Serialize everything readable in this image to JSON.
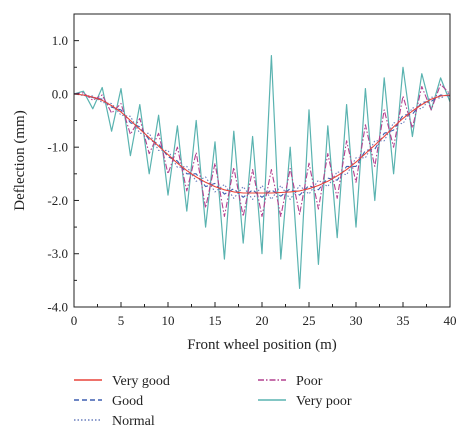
{
  "chart_data": {
    "type": "line",
    "xlabel": "Front wheel position (m)",
    "ylabel": "Deflection (mm)",
    "xlim": [
      0,
      40
    ],
    "ylim": [
      -4.0,
      1.5
    ],
    "x_ticks": [
      0,
      5,
      10,
      15,
      20,
      25,
      30,
      35,
      40
    ],
    "x_tick_labels": [
      "0",
      "5",
      "10",
      "15",
      "20",
      "25",
      "30",
      "35",
      "40"
    ],
    "y_ticks": [
      1.0,
      0.0,
      -1.0,
      -2.0,
      -3.0,
      -4.0
    ],
    "y_tick_labels": [
      "1.0",
      "0.0",
      "-1.0",
      "-2.0",
      "-3.0",
      "-4.0"
    ],
    "grid": false,
    "legend_position": "bottom",
    "series": [
      {
        "name": "Very good",
        "color": "#e8433a",
        "dash": "solid",
        "x": [
          0,
          1,
          2,
          3,
          4,
          5,
          6,
          7,
          8,
          9,
          10,
          11,
          12,
          13,
          14,
          15,
          16,
          17,
          18,
          19,
          20,
          21,
          22,
          23,
          24,
          25,
          26,
          27,
          28,
          29,
          30,
          31,
          32,
          33,
          34,
          35,
          36,
          37,
          38,
          39,
          40
        ],
        "y": [
          0,
          -0.02,
          -0.06,
          -0.12,
          -0.22,
          -0.34,
          -0.5,
          -0.66,
          -0.82,
          -0.98,
          -1.14,
          -1.3,
          -1.44,
          -1.56,
          -1.66,
          -1.74,
          -1.8,
          -1.84,
          -1.86,
          -1.86,
          -1.86,
          -1.86,
          -1.85,
          -1.84,
          -1.82,
          -1.78,
          -1.72,
          -1.64,
          -1.54,
          -1.42,
          -1.28,
          -1.12,
          -0.96,
          -0.8,
          -0.62,
          -0.46,
          -0.32,
          -0.2,
          -0.1,
          -0.04,
          -0.02
        ]
      },
      {
        "name": "Good",
        "color": "#3f5fb0",
        "dash": "dashed",
        "x": [
          0,
          1,
          2,
          3,
          4,
          5,
          6,
          7,
          8,
          9,
          10,
          11,
          12,
          13,
          14,
          15,
          16,
          17,
          18,
          19,
          20,
          21,
          22,
          23,
          24,
          25,
          26,
          27,
          28,
          29,
          30,
          31,
          32,
          33,
          34,
          35,
          36,
          37,
          38,
          39,
          40
        ],
        "y": [
          0,
          -0.02,
          -0.07,
          -0.1,
          -0.25,
          -0.3,
          -0.54,
          -0.62,
          -0.86,
          -0.94,
          -1.18,
          -1.26,
          -1.5,
          -1.5,
          -1.74,
          -1.68,
          -1.88,
          -1.78,
          -1.94,
          -1.8,
          -1.94,
          -1.8,
          -1.92,
          -1.78,
          -1.9,
          -1.72,
          -1.8,
          -1.58,
          -1.62,
          -1.36,
          -1.36,
          -1.06,
          -1.04,
          -0.74,
          -0.68,
          -0.4,
          -0.38,
          -0.16,
          -0.14,
          -0.02,
          -0.04
        ]
      },
      {
        "name": "Normal",
        "color": "#6a7fbe",
        "dash": "dotted",
        "x": [
          0,
          1,
          2,
          3,
          4,
          5,
          6,
          7,
          8,
          9,
          10,
          11,
          12,
          13,
          14,
          15,
          16,
          17,
          18,
          19,
          20,
          21,
          22,
          23,
          24,
          25,
          26,
          27,
          28,
          29,
          30,
          31,
          32,
          33,
          34,
          35,
          36,
          37,
          38,
          39,
          40
        ],
        "y": [
          0,
          -0.03,
          -0.04,
          -0.16,
          -0.18,
          -0.4,
          -0.42,
          -0.74,
          -0.74,
          -1.06,
          -1.06,
          -1.38,
          -1.36,
          -1.64,
          -1.56,
          -1.84,
          -1.7,
          -1.96,
          -1.74,
          -1.98,
          -1.72,
          -1.98,
          -1.72,
          -1.98,
          -1.72,
          -1.88,
          -1.62,
          -1.74,
          -1.46,
          -1.52,
          -1.2,
          -1.2,
          -0.88,
          -0.88,
          -0.54,
          -0.56,
          -0.26,
          -0.28,
          -0.06,
          -0.08,
          0.02
        ]
      },
      {
        "name": "Poor",
        "color": "#b4408f",
        "dash": "dashdot",
        "x": [
          0,
          1,
          2,
          3,
          4,
          5,
          6,
          7,
          8,
          9,
          10,
          11,
          12,
          13,
          14,
          15,
          16,
          17,
          18,
          19,
          20,
          21,
          22,
          23,
          24,
          25,
          26,
          27,
          28,
          29,
          30,
          31,
          32,
          33,
          34,
          35,
          36,
          37,
          38,
          39,
          40
        ],
        "y": [
          0,
          0.02,
          -0.12,
          -0.02,
          -0.36,
          -0.18,
          -0.76,
          -0.46,
          -1.12,
          -0.74,
          -1.5,
          -1.0,
          -1.82,
          -1.1,
          -2.14,
          -1.3,
          -2.3,
          -1.38,
          -2.3,
          -1.42,
          -2.3,
          -1.42,
          -2.3,
          -1.4,
          -2.26,
          -1.3,
          -2.16,
          -1.12,
          -1.96,
          -0.88,
          -1.66,
          -0.58,
          -1.36,
          -0.3,
          -1.0,
          -0.04,
          -0.64,
          0.14,
          -0.3,
          0.18,
          0
        ]
      },
      {
        "name": "Very poor",
        "color": "#5ab3b0",
        "dash": "solid",
        "x": [
          0,
          1,
          2,
          3,
          4,
          5,
          6,
          7,
          8,
          9,
          10,
          11,
          12,
          13,
          14,
          15,
          16,
          17,
          18,
          19,
          20,
          21,
          22,
          23,
          24,
          25,
          26,
          27,
          28,
          29,
          30,
          31,
          32,
          33,
          34,
          35,
          36,
          37,
          38,
          39,
          40
        ],
        "y": [
          0,
          0.05,
          -0.28,
          0.12,
          -0.7,
          0.1,
          -1.16,
          -0.2,
          -1.5,
          -0.4,
          -1.9,
          -0.6,
          -2.2,
          -0.5,
          -2.5,
          -0.9,
          -3.1,
          -0.7,
          -2.8,
          -0.8,
          -3.0,
          0.72,
          -3.1,
          -1.0,
          -3.65,
          -0.3,
          -3.2,
          -0.6,
          -2.7,
          -0.2,
          -2.5,
          0.1,
          -2.0,
          0.3,
          -1.5,
          0.5,
          -0.8,
          0.38,
          -0.3,
          0.3,
          -0.15
        ]
      }
    ]
  }
}
